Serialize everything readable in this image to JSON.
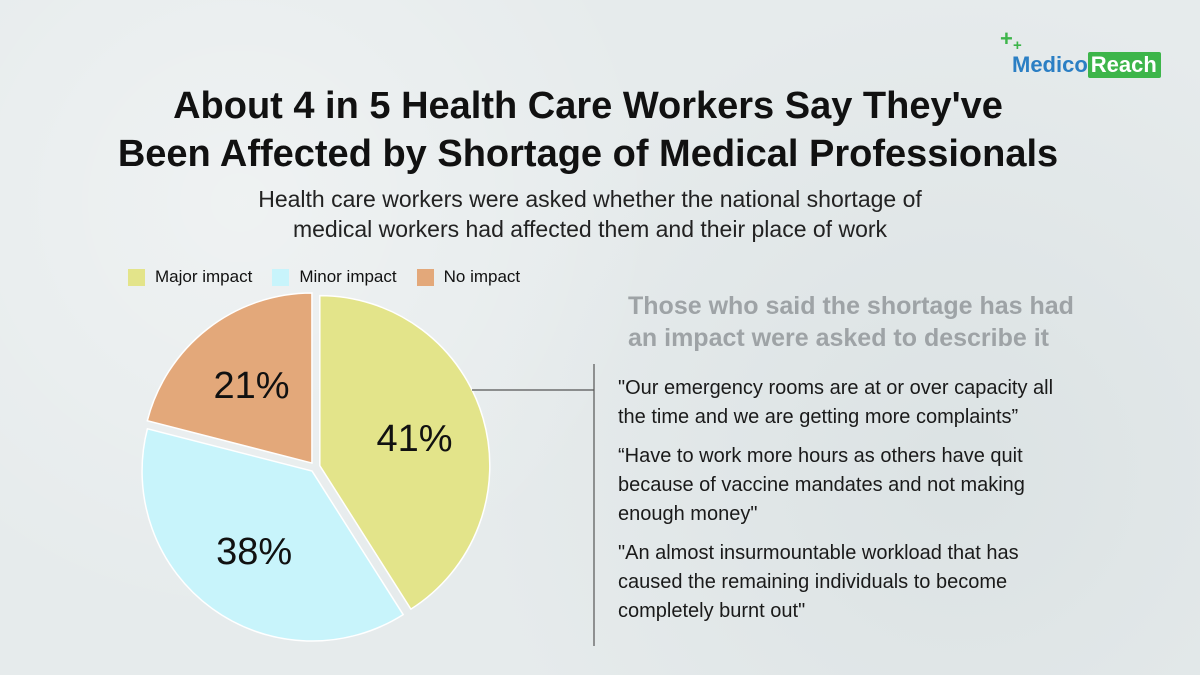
{
  "logo": {
    "part1": "Medico",
    "part2": "Reach"
  },
  "title": {
    "line1": "About 4 in 5 Health Care Workers Say They've",
    "line2": "Been Affected by Shortage of Medical Professionals"
  },
  "subtitle": {
    "line1": "Health care workers were asked whether the national shortage of",
    "line2": "medical workers had affected them and their place of work"
  },
  "chart_data": {
    "type": "pie",
    "categories": [
      "Major impact",
      "Minor impact",
      "No impact"
    ],
    "values": [
      41,
      38,
      21
    ],
    "labels": [
      "41%",
      "38%",
      "21%"
    ],
    "colors": [
      "#e3e48a",
      "#c8f4fb",
      "#e3a87a"
    ],
    "legend_position": "top-left"
  },
  "side": {
    "heading_line1": "Those who said the shortage has had",
    "heading_line2": "an impact were asked to describe it",
    "quotes": [
      {
        "line1": "\"Our emergency rooms are at or over capacity all",
        "line2": "the time and we are getting more complaints”"
      },
      {
        "line1": "“Have to work more hours as others have quit",
        "line2": "because of vaccine mandates and not making",
        "line3": "enough money\""
      },
      {
        "line1": "\"An almost insurmountable workload that has",
        "line2": "caused the remaining individuals to become",
        "line3": "completely burnt out\""
      }
    ]
  }
}
